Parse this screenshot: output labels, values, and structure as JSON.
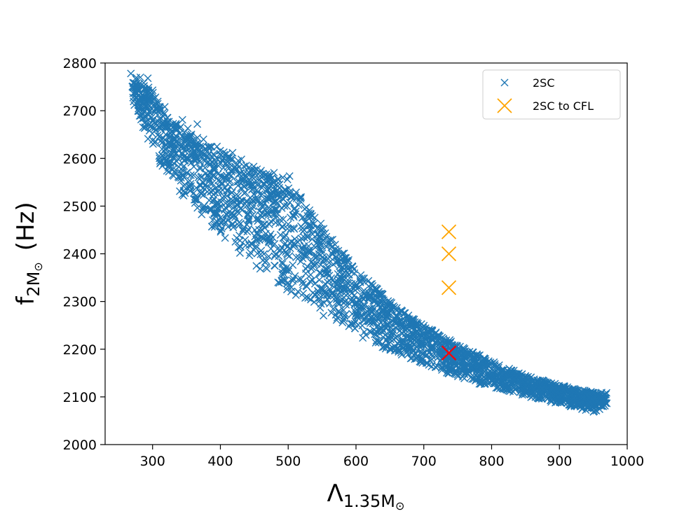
{
  "chart_data": {
    "type": "scatter",
    "title": "",
    "xlabel": {
      "base": "Λ",
      "subscript": "1.35M",
      "subscript_symbol": "⊙"
    },
    "ylabel": {
      "base": "f",
      "subscript": "2M",
      "subscript_symbol": "⊙",
      "unit": "(Hz)"
    },
    "xlim": [
      230,
      1000
    ],
    "ylim": [
      2000,
      2800
    ],
    "xticks": [
      300,
      400,
      500,
      600,
      700,
      800,
      900,
      1000
    ],
    "yticks": [
      2000,
      2100,
      2200,
      2300,
      2400,
      2500,
      2600,
      2700,
      2800
    ],
    "grid": false,
    "legend_position": "top-right",
    "series": [
      {
        "name": "2SC",
        "color": "#1f77b4",
        "marker": "x",
        "envelope": {
          "upper": [
            [
              265,
              2780
            ],
            [
              280,
              2770
            ],
            [
              300,
              2740
            ],
            [
              320,
              2690
            ],
            [
              350,
              2660
            ],
            [
              380,
              2630
            ],
            [
              410,
              2610
            ],
            [
              440,
              2585
            ],
            [
              470,
              2570
            ],
            [
              500,
              2560
            ],
            [
              520,
              2520
            ],
            [
              550,
              2460
            ],
            [
              600,
              2370
            ],
            [
              650,
              2300
            ],
            [
              700,
              2250
            ],
            [
              750,
              2210
            ],
            [
              800,
              2175
            ],
            [
              850,
              2145
            ],
            [
              900,
              2125
            ],
            [
              950,
              2110
            ],
            [
              970,
              2110
            ]
          ],
          "lower": [
            [
              270,
              2720
            ],
            [
              290,
              2650
            ],
            [
              310,
              2590
            ],
            [
              340,
              2530
            ],
            [
              370,
              2480
            ],
            [
              400,
              2435
            ],
            [
              450,
              2375
            ],
            [
              500,
              2320
            ],
            [
              550,
              2270
            ],
            [
              600,
              2230
            ],
            [
              650,
              2195
            ],
            [
              700,
              2170
            ],
            [
              750,
              2140
            ],
            [
              800,
              2120
            ],
            [
              850,
              2100
            ],
            [
              900,
              2085
            ],
            [
              950,
              2068
            ],
            [
              970,
              2080
            ]
          ]
        },
        "outliers": [
          [
            268,
            2778
          ],
          [
            282,
            2770
          ],
          [
            293,
            2768
          ],
          [
            276,
            2735
          ],
          [
            281,
            2720
          ],
          [
            300,
            2743
          ],
          [
            311,
            2707
          ],
          [
            318,
            2708
          ],
          [
            292,
            2705
          ],
          [
            344,
            2681
          ],
          [
            366,
            2672
          ],
          [
            352,
            2663
          ],
          [
            375,
            2640
          ],
          [
            383,
            2624
          ],
          [
            395,
            2625
          ],
          [
            405,
            2613
          ],
          [
            418,
            2612
          ],
          [
            431,
            2598
          ],
          [
            449,
            2583
          ],
          [
            438,
            2585
          ],
          [
            458,
            2570
          ],
          [
            479,
            2570
          ],
          [
            492,
            2560
          ],
          [
            502,
            2563
          ],
          [
            483,
            2545
          ],
          [
            458,
            2525
          ],
          [
            470,
            2515
          ],
          [
            413,
            2590
          ],
          [
            387,
            2605
          ]
        ]
      },
      {
        "name": "2SC to CFL",
        "color": "#ffa500",
        "marker": "x",
        "points": [
          [
            737,
            2446
          ],
          [
            737,
            2400
          ],
          [
            737,
            2329
          ]
        ]
      },
      {
        "name": "",
        "color": "#ff0000",
        "marker": "x",
        "points": [
          [
            737,
            2192
          ]
        ]
      }
    ]
  }
}
